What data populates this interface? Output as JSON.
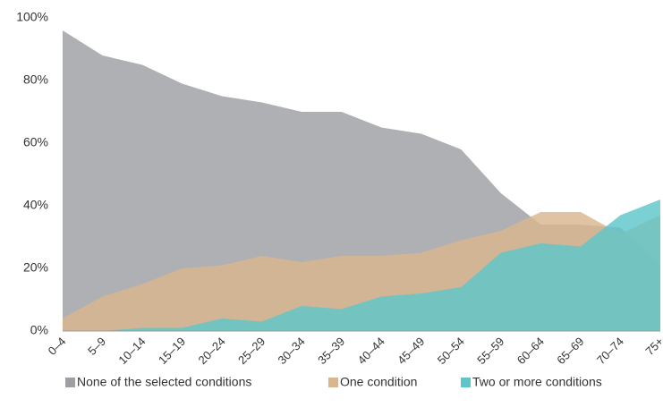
{
  "chart_data": {
    "type": "area",
    "categories": [
      "0–4",
      "5–9",
      "10–14",
      "15–19",
      "20–24",
      "25–29",
      "30–34",
      "35–39",
      "40–44",
      "45–49",
      "50–54",
      "55–59",
      "60–64",
      "65–69",
      "70–74",
      "75+"
    ],
    "series": [
      {
        "name": "None of the selected conditions",
        "color": "#9d9fa2",
        "values": [
          96,
          88,
          85,
          79,
          75,
          73,
          70,
          70,
          65,
          63,
          58,
          44,
          34,
          34,
          33,
          21
        ]
      },
      {
        "name": "One condition",
        "color": "#d9b68e",
        "values": [
          4,
          11,
          15,
          20,
          21,
          24,
          22,
          24,
          24,
          25,
          29,
          32,
          38,
          38,
          31,
          37
        ]
      },
      {
        "name": "Two or more conditions",
        "color": "#5ec6ca",
        "values": [
          0,
          0,
          1,
          1,
          4,
          3,
          8,
          7,
          11,
          12,
          14,
          25,
          28,
          27,
          37,
          42
        ]
      }
    ],
    "ylim": [
      0,
      100
    ],
    "yticks": [
      {
        "value": 0,
        "label": "0%"
      },
      {
        "value": 20,
        "label": "20%"
      },
      {
        "value": 40,
        "label": "40%"
      },
      {
        "value": 60,
        "label": "60%"
      },
      {
        "value": 80,
        "label": "80%"
      },
      {
        "value": 100,
        "label": "100%"
      }
    ],
    "legend": "bottom"
  }
}
